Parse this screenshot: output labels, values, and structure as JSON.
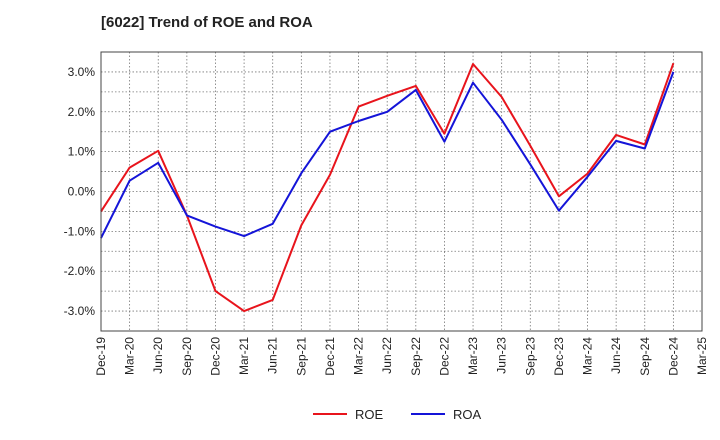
{
  "chart_data": {
    "type": "line",
    "title": "[6022]  Trend of ROE and ROA",
    "xlabel": "",
    "ylabel": "",
    "categories": [
      "Dec-19",
      "Mar-20",
      "Jun-20",
      "Sep-20",
      "Dec-20",
      "Mar-21",
      "Jun-21",
      "Sep-21",
      "Dec-21",
      "Mar-22",
      "Jun-22",
      "Sep-22",
      "Dec-22",
      "Mar-23",
      "Jun-23",
      "Sep-23",
      "Dec-23",
      "Mar-24",
      "Jun-24",
      "Sep-24",
      "Dec-24",
      "Mar-25"
    ],
    "y_ticks": [
      "3.0%",
      "2.0%",
      "1.0%",
      "0.0%",
      "-1.0%",
      "-2.0%",
      "-3.0%"
    ],
    "ylim": [
      -3.5,
      3.5
    ],
    "grid": true,
    "legend_position": "bottom",
    "series": [
      {
        "name": "ROE",
        "color": "#e8141c",
        "values": [
          -0.5,
          0.6,
          1.02,
          -0.6,
          -2.5,
          -3.0,
          -2.72,
          -0.85,
          0.42,
          2.13,
          2.4,
          2.65,
          1.45,
          3.2,
          2.37,
          1.15,
          -0.12,
          0.45,
          1.42,
          1.18,
          3.22,
          null
        ]
      },
      {
        "name": "ROA",
        "color": "#1414d8",
        "values": [
          -1.17,
          0.27,
          0.72,
          -0.6,
          -0.88,
          -1.12,
          -0.81,
          0.46,
          1.5,
          1.77,
          2.0,
          2.55,
          1.25,
          2.73,
          1.8,
          0.68,
          -0.48,
          0.37,
          1.27,
          1.08,
          3.0,
          null
        ]
      }
    ]
  }
}
